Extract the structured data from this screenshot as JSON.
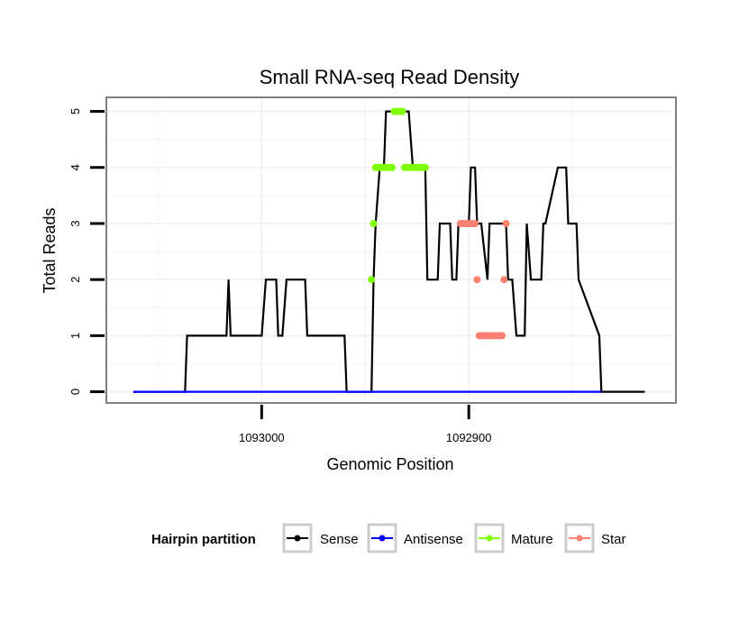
{
  "chart_data": {
    "type": "line",
    "title": "Small RNA-seq Read Density",
    "xlabel": "Genomic Position",
    "ylabel": "Total Reads",
    "x_reversed": true,
    "xlim": [
      1093075,
      1092800
    ],
    "ylim": [
      -0.2,
      5.25
    ],
    "x_ticks": [
      1093000,
      1092900
    ],
    "x_tick_labels": [
      "1093000",
      "1092900"
    ],
    "y_ticks": [
      0,
      1,
      2,
      3,
      4,
      5
    ],
    "y_tick_labels": [
      "0",
      "1",
      "2",
      "3",
      "4",
      "5"
    ],
    "grid": true,
    "legend": {
      "title": "Hairpin partition",
      "position": "bottom",
      "entries": [
        {
          "name": "Sense",
          "color": "#000000"
        },
        {
          "name": "Antisense",
          "color": "#0000ff"
        },
        {
          "name": "Mature",
          "color": "#7fff00"
        },
        {
          "name": "Star",
          "color": "#fa8072"
        }
      ]
    },
    "series": [
      {
        "name": "Sense",
        "color": "#000000",
        "x": [
          1093062,
          1093037,
          1093036,
          1093017,
          1093016,
          1093015,
          1093000,
          1092998,
          1092993,
          1092992,
          1092990,
          1092988,
          1092979,
          1092978,
          1092960,
          1092959,
          1092947,
          1092946,
          1092945,
          1092943,
          1092941,
          1092940,
          1092929,
          1092927,
          1092921,
          1092920,
          1092915,
          1092914,
          1092909,
          1092908,
          1092906,
          1092905,
          1092900,
          1092899,
          1092897,
          1092896,
          1092894,
          1092891,
          1092890,
          1092882,
          1092881,
          1092879,
          1092877,
          1092873,
          1092872,
          1092870,
          1092865,
          1092864,
          1092863,
          1092857,
          1092853,
          1092852,
          1092848,
          1092847,
          1092837,
          1092836,
          1092815
        ],
        "y": [
          0,
          0,
          1,
          1,
          2,
          1,
          1,
          2,
          2,
          1,
          1,
          2,
          2,
          1,
          1,
          0,
          0,
          2,
          3,
          4,
          4,
          5,
          5,
          4,
          4,
          2,
          2,
          3,
          3,
          2,
          2,
          3,
          3,
          4,
          4,
          3,
          3,
          2,
          3,
          3,
          2,
          2,
          1,
          1,
          3,
          2,
          2,
          3,
          3,
          4,
          4,
          3,
          3,
          2,
          1,
          0,
          0
        ]
      },
      {
        "name": "Antisense",
        "color": "#0000ff",
        "x": [
          1093062,
          1092836
        ],
        "y": [
          0,
          0
        ]
      }
    ],
    "markers": [
      {
        "name": "Mature",
        "color": "#7fff00",
        "x": [
          1092947,
          1092946,
          1092945,
          1092944,
          1092943,
          1092942,
          1092941,
          1092940,
          1092939,
          1092938,
          1092937,
          1092936,
          1092935,
          1092934,
          1092933,
          1092932,
          1092931,
          1092930,
          1092929,
          1092928,
          1092927,
          1092926,
          1092925,
          1092924,
          1092923,
          1092922,
          1092921
        ],
        "y": [
          2,
          3,
          4,
          4,
          4,
          4,
          4,
          4,
          4,
          4,
          4,
          5,
          5,
          5,
          5,
          5,
          4,
          4,
          4,
          4,
          4,
          4,
          4,
          4,
          4,
          4,
          4
        ]
      },
      {
        "name": "Star",
        "color": "#fa8072",
        "x": [
          1092904,
          1092903,
          1092902,
          1092901,
          1092900,
          1092899,
          1092898,
          1092897,
          1092896,
          1092895,
          1092894,
          1092893,
          1092892,
          1092891,
          1092890,
          1092889,
          1092888,
          1092887,
          1092886,
          1092885,
          1092884,
          1092883,
          1092882
        ],
        "y": [
          3,
          3,
          3,
          3,
          3,
          3,
          3,
          3,
          2,
          1,
          1,
          1,
          1,
          1,
          1,
          1,
          1,
          1,
          1,
          1,
          1,
          2,
          3
        ]
      }
    ]
  }
}
